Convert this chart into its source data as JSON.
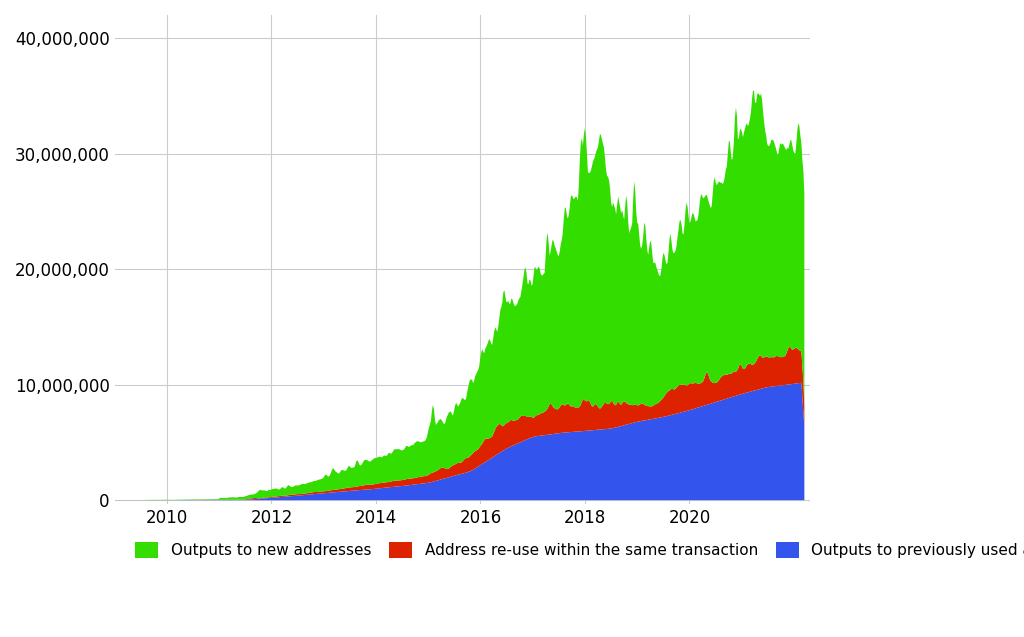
{
  "title": "",
  "xlabel": "",
  "ylabel": "",
  "ylim": [
    -300000,
    42000000
  ],
  "xlim": [
    2009.0,
    2022.3
  ],
  "background_color": "#ffffff",
  "grid_color": "#cccccc",
  "colors": {
    "new": "#33dd00",
    "reuse": "#dd2200",
    "prev": "#3355ee"
  },
  "legend_labels": [
    "Outputs to new addresses",
    "Address re-use within the same transaction",
    "Outputs to previously used addresses"
  ],
  "yticks": [
    0,
    10000000,
    20000000,
    30000000,
    40000000
  ],
  "ytick_labels": [
    "0",
    "10,000,000",
    "20,000,000",
    "30,000,000",
    "40,000,000"
  ],
  "xticks": [
    2010,
    2012,
    2014,
    2016,
    2018,
    2020
  ]
}
